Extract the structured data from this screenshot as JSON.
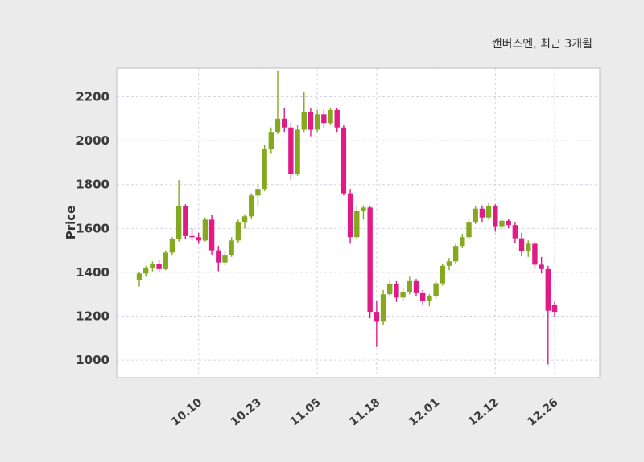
{
  "chart_data": {
    "type": "candlestick",
    "title": "캔버스엔, 최근 3개월",
    "ylabel": "Price",
    "ylim": [
      920,
      2330
    ],
    "y_ticks": [
      1000,
      1200,
      1400,
      1600,
      1800,
      2000,
      2200
    ],
    "x_ticks": [
      {
        "index": 9,
        "label": "10.10"
      },
      {
        "index": 18,
        "label": "10.23"
      },
      {
        "index": 27,
        "label": "11.05"
      },
      {
        "index": 36,
        "label": "11.18"
      },
      {
        "index": 45,
        "label": "12.01"
      },
      {
        "index": 54,
        "label": "12.12"
      },
      {
        "index": 63,
        "label": "12.26"
      }
    ],
    "grid": "dashed",
    "legend": "none",
    "colors": {
      "up": "#84A81E",
      "down": "#DE1B87",
      "background": "#EBEBEB",
      "plot_background": "#FFFFFF",
      "gridline": "#D2D5E4",
      "border": "#C6C6C6",
      "text": "#3A3A3A"
    },
    "candle_format": [
      "open",
      "high",
      "low",
      "close"
    ],
    "candles": [
      [
        1365,
        1400,
        1335,
        1395
      ],
      [
        1395,
        1430,
        1380,
        1420
      ],
      [
        1420,
        1450,
        1405,
        1440
      ],
      [
        1440,
        1455,
        1400,
        1415
      ],
      [
        1415,
        1500,
        1410,
        1490
      ],
      [
        1490,
        1560,
        1480,
        1550
      ],
      [
        1550,
        1820,
        1540,
        1700
      ],
      [
        1700,
        1710,
        1550,
        1565
      ],
      [
        1565,
        1600,
        1545,
        1560
      ],
      [
        1560,
        1580,
        1530,
        1545
      ],
      [
        1545,
        1650,
        1540,
        1640
      ],
      [
        1640,
        1660,
        1480,
        1500
      ],
      [
        1500,
        1520,
        1405,
        1445
      ],
      [
        1445,
        1495,
        1430,
        1480
      ],
      [
        1480,
        1560,
        1470,
        1545
      ],
      [
        1545,
        1640,
        1535,
        1630
      ],
      [
        1630,
        1665,
        1600,
        1655
      ],
      [
        1655,
        1760,
        1645,
        1750
      ],
      [
        1750,
        1800,
        1700,
        1780
      ],
      [
        1780,
        1980,
        1770,
        1960
      ],
      [
        1960,
        2060,
        1940,
        2040
      ],
      [
        2040,
        2320,
        2030,
        2100
      ],
      [
        2100,
        2150,
        2040,
        2060
      ],
      [
        2060,
        2080,
        1820,
        1850
      ],
      [
        1850,
        2070,
        1840,
        2050
      ],
      [
        2050,
        2220,
        2040,
        2130
      ],
      [
        2130,
        2150,
        2020,
        2050
      ],
      [
        2050,
        2140,
        2040,
        2120
      ],
      [
        2120,
        2140,
        2060,
        2080
      ],
      [
        2080,
        2150,
        2070,
        2140
      ],
      [
        2140,
        2150,
        2040,
        2060
      ],
      [
        2060,
        2070,
        1750,
        1760
      ],
      [
        1760,
        1780,
        1530,
        1560
      ],
      [
        1560,
        1700,
        1550,
        1680
      ],
      [
        1680,
        1705,
        1640,
        1695
      ],
      [
        1695,
        1700,
        1190,
        1220
      ],
      [
        1220,
        1270,
        1060,
        1175
      ],
      [
        1175,
        1320,
        1160,
        1300
      ],
      [
        1300,
        1360,
        1290,
        1345
      ],
      [
        1345,
        1360,
        1265,
        1285
      ],
      [
        1285,
        1330,
        1270,
        1310
      ],
      [
        1310,
        1380,
        1300,
        1360
      ],
      [
        1360,
        1370,
        1290,
        1305
      ],
      [
        1305,
        1320,
        1250,
        1270
      ],
      [
        1270,
        1300,
        1245,
        1290
      ],
      [
        1290,
        1360,
        1280,
        1350
      ],
      [
        1350,
        1440,
        1340,
        1430
      ],
      [
        1430,
        1465,
        1410,
        1450
      ],
      [
        1450,
        1530,
        1440,
        1520
      ],
      [
        1520,
        1575,
        1510,
        1560
      ],
      [
        1560,
        1645,
        1550,
        1630
      ],
      [
        1630,
        1700,
        1620,
        1690
      ],
      [
        1690,
        1705,
        1630,
        1650
      ],
      [
        1650,
        1715,
        1640,
        1700
      ],
      [
        1700,
        1710,
        1585,
        1610
      ],
      [
        1610,
        1645,
        1595,
        1635
      ],
      [
        1635,
        1645,
        1600,
        1615
      ],
      [
        1615,
        1630,
        1535,
        1555
      ],
      [
        1555,
        1580,
        1475,
        1495
      ],
      [
        1495,
        1545,
        1470,
        1530
      ],
      [
        1530,
        1540,
        1415,
        1435
      ],
      [
        1435,
        1470,
        1395,
        1415
      ],
      [
        1415,
        1430,
        980,
        1225
      ],
      [
        1250,
        1265,
        1195,
        1220
      ]
    ]
  }
}
